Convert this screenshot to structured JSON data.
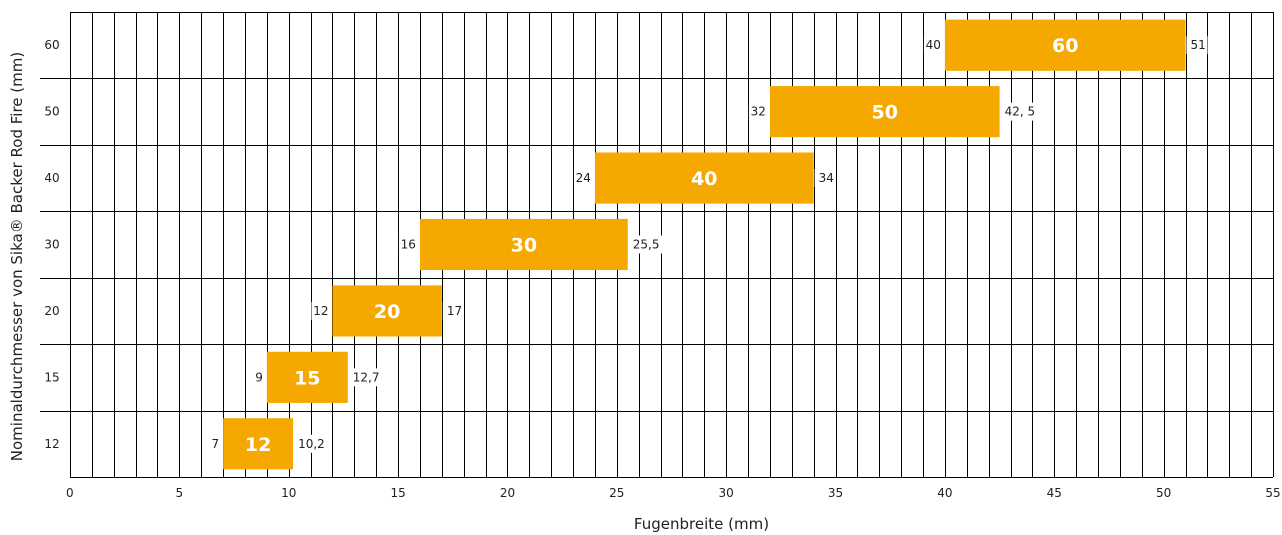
{
  "colors": {
    "bar": "#F5A800",
    "grid": "#000000",
    "text": "#222222"
  },
  "chart_data": {
    "type": "bar",
    "orientation": "horizontal-range",
    "xlabel": "Fugenbreite (mm)",
    "ylabel": "Nominaldurchmesser von  Sika® Backer Rod Fire (mm)",
    "xlim": [
      0,
      55
    ],
    "x_tick_labels": [
      "0",
      "5",
      "10",
      "15",
      "20",
      "25",
      "30",
      "35",
      "40",
      "45",
      "50",
      "55"
    ],
    "x_minor_step": 1,
    "grid": true,
    "categories": [
      "12",
      "15",
      "20",
      "30",
      "40",
      "50",
      "60"
    ],
    "bars": [
      {
        "category": "12",
        "label": "12",
        "start": 7,
        "end": 10.2,
        "start_label": "7",
        "end_label": "10,2"
      },
      {
        "category": "15",
        "label": "15",
        "start": 9,
        "end": 12.7,
        "start_label": "9",
        "end_label": "12,7"
      },
      {
        "category": "20",
        "label": "20",
        "start": 12,
        "end": 17,
        "start_label": "12",
        "end_label": "17"
      },
      {
        "category": "30",
        "label": "30",
        "start": 16,
        "end": 25.5,
        "start_label": "16",
        "end_label": "25,5"
      },
      {
        "category": "40",
        "label": "40",
        "start": 24,
        "end": 34,
        "start_label": "24",
        "end_label": "34"
      },
      {
        "category": "50",
        "label": "50",
        "start": 32,
        "end": 42.5,
        "start_label": "32",
        "end_label": "42, 5"
      },
      {
        "category": "60",
        "label": "60",
        "start": 40,
        "end": 51,
        "start_label": "40",
        "end_label": "51"
      }
    ]
  }
}
